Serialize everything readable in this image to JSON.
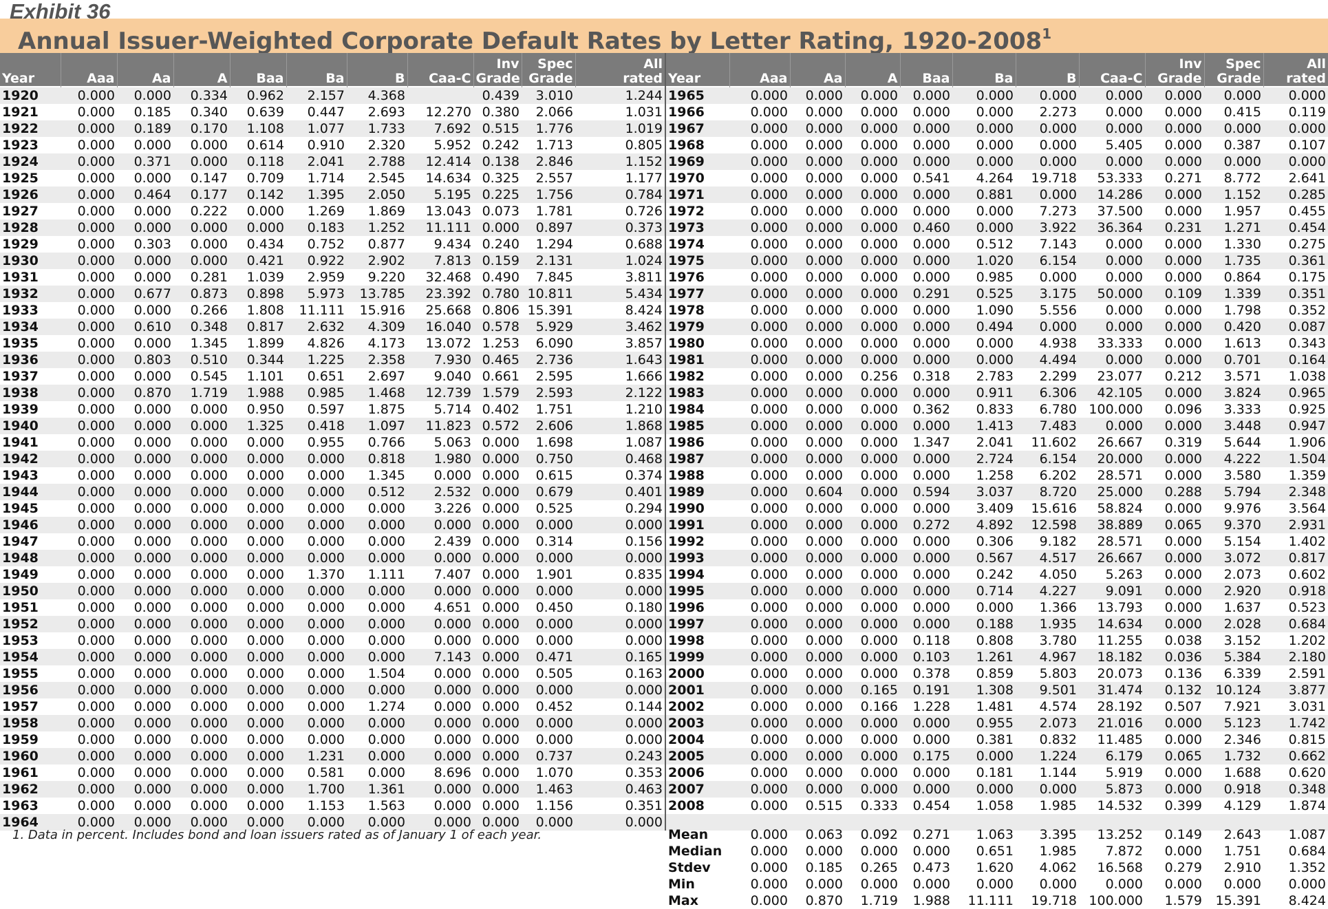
{
  "exhibit": "Exhibit 36",
  "title": "Annual Issuer-Weighted Corporate Default Rates by Letter Rating, 1920-2008",
  "title_sup": "1",
  "columns": [
    {
      "top": "",
      "bottom": "Year"
    },
    {
      "top": "",
      "bottom": "Aaa"
    },
    {
      "top": "",
      "bottom": "Aa"
    },
    {
      "top": "",
      "bottom": "A"
    },
    {
      "top": "",
      "bottom": "Baa"
    },
    {
      "top": "",
      "bottom": "Ba"
    },
    {
      "top": "",
      "bottom": "B"
    },
    {
      "top": "",
      "bottom": "Caa-C"
    },
    {
      "top": "Inv",
      "bottom": "Grade"
    },
    {
      "top": "Spec",
      "bottom": "Grade"
    },
    {
      "top": "All",
      "bottom": "rated"
    }
  ],
  "left_rows": [
    [
      "1920",
      "0.000",
      "0.000",
      "0.334",
      "0.962",
      "2.157",
      "4.368",
      "",
      "0.439",
      "3.010",
      "1.244"
    ],
    [
      "1921",
      "0.000",
      "0.185",
      "0.340",
      "0.639",
      "0.447",
      "2.693",
      "12.270",
      "0.380",
      "2.066",
      "1.031"
    ],
    [
      "1922",
      "0.000",
      "0.189",
      "0.170",
      "1.108",
      "1.077",
      "1.733",
      "7.692",
      "0.515",
      "1.776",
      "1.019"
    ],
    [
      "1923",
      "0.000",
      "0.000",
      "0.000",
      "0.614",
      "0.910",
      "2.320",
      "5.952",
      "0.242",
      "1.713",
      "0.805"
    ],
    [
      "1924",
      "0.000",
      "0.371",
      "0.000",
      "0.118",
      "2.041",
      "2.788",
      "12.414",
      "0.138",
      "2.846",
      "1.152"
    ],
    [
      "1925",
      "0.000",
      "0.000",
      "0.147",
      "0.709",
      "1.714",
      "2.545",
      "14.634",
      "0.325",
      "2.557",
      "1.177"
    ],
    [
      "1926",
      "0.000",
      "0.464",
      "0.177",
      "0.142",
      "1.395",
      "2.050",
      "5.195",
      "0.225",
      "1.756",
      "0.784"
    ],
    [
      "1927",
      "0.000",
      "0.000",
      "0.222",
      "0.000",
      "1.269",
      "1.869",
      "13.043",
      "0.073",
      "1.781",
      "0.726"
    ],
    [
      "1928",
      "0.000",
      "0.000",
      "0.000",
      "0.000",
      "0.183",
      "1.252",
      "11.111",
      "0.000",
      "0.897",
      "0.373"
    ],
    [
      "1929",
      "0.000",
      "0.303",
      "0.000",
      "0.434",
      "0.752",
      "0.877",
      "9.434",
      "0.240",
      "1.294",
      "0.688"
    ],
    [
      "1930",
      "0.000",
      "0.000",
      "0.000",
      "0.421",
      "0.922",
      "2.902",
      "7.813",
      "0.159",
      "2.131",
      "1.024"
    ],
    [
      "1931",
      "0.000",
      "0.000",
      "0.281",
      "1.039",
      "2.959",
      "9.220",
      "32.468",
      "0.490",
      "7.845",
      "3.811"
    ],
    [
      "1932",
      "0.000",
      "0.677",
      "0.873",
      "0.898",
      "5.973",
      "13.785",
      "23.392",
      "0.780",
      "10.811",
      "5.434"
    ],
    [
      "1933",
      "0.000",
      "0.000",
      "0.266",
      "1.808",
      "11.111",
      "15.916",
      "25.668",
      "0.806",
      "15.391",
      "8.424"
    ],
    [
      "1934",
      "0.000",
      "0.610",
      "0.348",
      "0.817",
      "2.632",
      "4.309",
      "16.040",
      "0.578",
      "5.929",
      "3.462"
    ],
    [
      "1935",
      "0.000",
      "0.000",
      "1.345",
      "1.899",
      "4.826",
      "4.173",
      "13.072",
      "1.253",
      "6.090",
      "3.857"
    ],
    [
      "1936",
      "0.000",
      "0.803",
      "0.510",
      "0.344",
      "1.225",
      "2.358",
      "7.930",
      "0.465",
      "2.736",
      "1.643"
    ],
    [
      "1937",
      "0.000",
      "0.000",
      "0.545",
      "1.101",
      "0.651",
      "2.697",
      "9.040",
      "0.661",
      "2.595",
      "1.666"
    ],
    [
      "1938",
      "0.000",
      "0.870",
      "1.719",
      "1.988",
      "0.985",
      "1.468",
      "12.739",
      "1.579",
      "2.593",
      "2.122"
    ],
    [
      "1939",
      "0.000",
      "0.000",
      "0.000",
      "0.950",
      "0.597",
      "1.875",
      "5.714",
      "0.402",
      "1.751",
      "1.210"
    ],
    [
      "1940",
      "0.000",
      "0.000",
      "0.000",
      "1.325",
      "0.418",
      "1.097",
      "11.823",
      "0.572",
      "2.606",
      "1.868"
    ],
    [
      "1941",
      "0.000",
      "0.000",
      "0.000",
      "0.000",
      "0.955",
      "0.766",
      "5.063",
      "0.000",
      "1.698",
      "1.087"
    ],
    [
      "1942",
      "0.000",
      "0.000",
      "0.000",
      "0.000",
      "0.000",
      "0.818",
      "1.980",
      "0.000",
      "0.750",
      "0.468"
    ],
    [
      "1943",
      "0.000",
      "0.000",
      "0.000",
      "0.000",
      "0.000",
      "1.345",
      "0.000",
      "0.000",
      "0.615",
      "0.374"
    ],
    [
      "1944",
      "0.000",
      "0.000",
      "0.000",
      "0.000",
      "0.000",
      "0.512",
      "2.532",
      "0.000",
      "0.679",
      "0.401"
    ],
    [
      "1945",
      "0.000",
      "0.000",
      "0.000",
      "0.000",
      "0.000",
      "0.000",
      "3.226",
      "0.000",
      "0.525",
      "0.294"
    ],
    [
      "1946",
      "0.000",
      "0.000",
      "0.000",
      "0.000",
      "0.000",
      "0.000",
      "0.000",
      "0.000",
      "0.000",
      "0.000"
    ],
    [
      "1947",
      "0.000",
      "0.000",
      "0.000",
      "0.000",
      "0.000",
      "0.000",
      "2.439",
      "0.000",
      "0.314",
      "0.156"
    ],
    [
      "1948",
      "0.000",
      "0.000",
      "0.000",
      "0.000",
      "0.000",
      "0.000",
      "0.000",
      "0.000",
      "0.000",
      "0.000"
    ],
    [
      "1949",
      "0.000",
      "0.000",
      "0.000",
      "0.000",
      "1.370",
      "1.111",
      "7.407",
      "0.000",
      "1.901",
      "0.835"
    ],
    [
      "1950",
      "0.000",
      "0.000",
      "0.000",
      "0.000",
      "0.000",
      "0.000",
      "0.000",
      "0.000",
      "0.000",
      "0.000"
    ],
    [
      "1951",
      "0.000",
      "0.000",
      "0.000",
      "0.000",
      "0.000",
      "0.000",
      "4.651",
      "0.000",
      "0.450",
      "0.180"
    ],
    [
      "1952",
      "0.000",
      "0.000",
      "0.000",
      "0.000",
      "0.000",
      "0.000",
      "0.000",
      "0.000",
      "0.000",
      "0.000"
    ],
    [
      "1953",
      "0.000",
      "0.000",
      "0.000",
      "0.000",
      "0.000",
      "0.000",
      "0.000",
      "0.000",
      "0.000",
      "0.000"
    ],
    [
      "1954",
      "0.000",
      "0.000",
      "0.000",
      "0.000",
      "0.000",
      "0.000",
      "7.143",
      "0.000",
      "0.471",
      "0.165"
    ],
    [
      "1955",
      "0.000",
      "0.000",
      "0.000",
      "0.000",
      "0.000",
      "1.504",
      "0.000",
      "0.000",
      "0.505",
      "0.163"
    ],
    [
      "1956",
      "0.000",
      "0.000",
      "0.000",
      "0.000",
      "0.000",
      "0.000",
      "0.000",
      "0.000",
      "0.000",
      "0.000"
    ],
    [
      "1957",
      "0.000",
      "0.000",
      "0.000",
      "0.000",
      "0.000",
      "1.274",
      "0.000",
      "0.000",
      "0.452",
      "0.144"
    ],
    [
      "1958",
      "0.000",
      "0.000",
      "0.000",
      "0.000",
      "0.000",
      "0.000",
      "0.000",
      "0.000",
      "0.000",
      "0.000"
    ],
    [
      "1959",
      "0.000",
      "0.000",
      "0.000",
      "0.000",
      "0.000",
      "0.000",
      "0.000",
      "0.000",
      "0.000",
      "0.000"
    ],
    [
      "1960",
      "0.000",
      "0.000",
      "0.000",
      "0.000",
      "1.231",
      "0.000",
      "0.000",
      "0.000",
      "0.737",
      "0.243"
    ],
    [
      "1961",
      "0.000",
      "0.000",
      "0.000",
      "0.000",
      "0.581",
      "0.000",
      "8.696",
      "0.000",
      "1.070",
      "0.353"
    ],
    [
      "1962",
      "0.000",
      "0.000",
      "0.000",
      "0.000",
      "1.700",
      "1.361",
      "0.000",
      "0.000",
      "1.463",
      "0.463"
    ],
    [
      "1963",
      "0.000",
      "0.000",
      "0.000",
      "0.000",
      "1.153",
      "1.563",
      "0.000",
      "0.000",
      "1.156",
      "0.351"
    ],
    [
      "1964",
      "0.000",
      "0.000",
      "0.000",
      "0.000",
      "0.000",
      "0.000",
      "0.000",
      "0.000",
      "0.000",
      "0.000"
    ]
  ],
  "right_rows": [
    [
      "1965",
      "0.000",
      "0.000",
      "0.000",
      "0.000",
      "0.000",
      "0.000",
      "0.000",
      "0.000",
      "0.000",
      "0.000"
    ],
    [
      "1966",
      "0.000",
      "0.000",
      "0.000",
      "0.000",
      "0.000",
      "2.273",
      "0.000",
      "0.000",
      "0.415",
      "0.119"
    ],
    [
      "1967",
      "0.000",
      "0.000",
      "0.000",
      "0.000",
      "0.000",
      "0.000",
      "0.000",
      "0.000",
      "0.000",
      "0.000"
    ],
    [
      "1968",
      "0.000",
      "0.000",
      "0.000",
      "0.000",
      "0.000",
      "0.000",
      "5.405",
      "0.000",
      "0.387",
      "0.107"
    ],
    [
      "1969",
      "0.000",
      "0.000",
      "0.000",
      "0.000",
      "0.000",
      "0.000",
      "0.000",
      "0.000",
      "0.000",
      "0.000"
    ],
    [
      "1970",
      "0.000",
      "0.000",
      "0.000",
      "0.541",
      "4.264",
      "19.718",
      "53.333",
      "0.271",
      "8.772",
      "2.641"
    ],
    [
      "1971",
      "0.000",
      "0.000",
      "0.000",
      "0.000",
      "0.881",
      "0.000",
      "14.286",
      "0.000",
      "1.152",
      "0.285"
    ],
    [
      "1972",
      "0.000",
      "0.000",
      "0.000",
      "0.000",
      "0.000",
      "7.273",
      "37.500",
      "0.000",
      "1.957",
      "0.455"
    ],
    [
      "1973",
      "0.000",
      "0.000",
      "0.000",
      "0.460",
      "0.000",
      "3.922",
      "36.364",
      "0.231",
      "1.271",
      "0.454"
    ],
    [
      "1974",
      "0.000",
      "0.000",
      "0.000",
      "0.000",
      "0.512",
      "7.143",
      "0.000",
      "0.000",
      "1.330",
      "0.275"
    ],
    [
      "1975",
      "0.000",
      "0.000",
      "0.000",
      "0.000",
      "1.020",
      "6.154",
      "0.000",
      "0.000",
      "1.735",
      "0.361"
    ],
    [
      "1976",
      "0.000",
      "0.000",
      "0.000",
      "0.000",
      "0.985",
      "0.000",
      "0.000",
      "0.000",
      "0.864",
      "0.175"
    ],
    [
      "1977",
      "0.000",
      "0.000",
      "0.000",
      "0.291",
      "0.525",
      "3.175",
      "50.000",
      "0.109",
      "1.339",
      "0.351"
    ],
    [
      "1978",
      "0.000",
      "0.000",
      "0.000",
      "0.000",
      "1.090",
      "5.556",
      "0.000",
      "0.000",
      "1.798",
      "0.352"
    ],
    [
      "1979",
      "0.000",
      "0.000",
      "0.000",
      "0.000",
      "0.494",
      "0.000",
      "0.000",
      "0.000",
      "0.420",
      "0.087"
    ],
    [
      "1980",
      "0.000",
      "0.000",
      "0.000",
      "0.000",
      "0.000",
      "4.938",
      "33.333",
      "0.000",
      "1.613",
      "0.343"
    ],
    [
      "1981",
      "0.000",
      "0.000",
      "0.000",
      "0.000",
      "0.000",
      "4.494",
      "0.000",
      "0.000",
      "0.701",
      "0.164"
    ],
    [
      "1982",
      "0.000",
      "0.000",
      "0.256",
      "0.318",
      "2.783",
      "2.299",
      "23.077",
      "0.212",
      "3.571",
      "1.038"
    ],
    [
      "1983",
      "0.000",
      "0.000",
      "0.000",
      "0.000",
      "0.911",
      "6.306",
      "42.105",
      "0.000",
      "3.824",
      "0.965"
    ],
    [
      "1984",
      "0.000",
      "0.000",
      "0.000",
      "0.362",
      "0.833",
      "6.780",
      "100.000",
      "0.096",
      "3.333",
      "0.925"
    ],
    [
      "1985",
      "0.000",
      "0.000",
      "0.000",
      "0.000",
      "1.413",
      "7.483",
      "0.000",
      "0.000",
      "3.448",
      "0.947"
    ],
    [
      "1986",
      "0.000",
      "0.000",
      "0.000",
      "1.347",
      "2.041",
      "11.602",
      "26.667",
      "0.319",
      "5.644",
      "1.906"
    ],
    [
      "1987",
      "0.000",
      "0.000",
      "0.000",
      "0.000",
      "2.724",
      "6.154",
      "20.000",
      "0.000",
      "4.222",
      "1.504"
    ],
    [
      "1988",
      "0.000",
      "0.000",
      "0.000",
      "0.000",
      "1.258",
      "6.202",
      "28.571",
      "0.000",
      "3.580",
      "1.359"
    ],
    [
      "1989",
      "0.000",
      "0.604",
      "0.000",
      "0.594",
      "3.037",
      "8.720",
      "25.000",
      "0.288",
      "5.794",
      "2.348"
    ],
    [
      "1990",
      "0.000",
      "0.000",
      "0.000",
      "0.000",
      "3.409",
      "15.616",
      "58.824",
      "0.000",
      "9.976",
      "3.564"
    ],
    [
      "1991",
      "0.000",
      "0.000",
      "0.000",
      "0.272",
      "4.892",
      "12.598",
      "38.889",
      "0.065",
      "9.370",
      "2.931"
    ],
    [
      "1992",
      "0.000",
      "0.000",
      "0.000",
      "0.000",
      "0.306",
      "9.182",
      "28.571",
      "0.000",
      "5.154",
      "1.402"
    ],
    [
      "1993",
      "0.000",
      "0.000",
      "0.000",
      "0.000",
      "0.567",
      "4.517",
      "26.667",
      "0.000",
      "3.072",
      "0.817"
    ],
    [
      "1994",
      "0.000",
      "0.000",
      "0.000",
      "0.000",
      "0.242",
      "4.050",
      "5.263",
      "0.000",
      "2.073",
      "0.602"
    ],
    [
      "1995",
      "0.000",
      "0.000",
      "0.000",
      "0.000",
      "0.714",
      "4.227",
      "9.091",
      "0.000",
      "2.920",
      "0.918"
    ],
    [
      "1996",
      "0.000",
      "0.000",
      "0.000",
      "0.000",
      "0.000",
      "1.366",
      "13.793",
      "0.000",
      "1.637",
      "0.523"
    ],
    [
      "1997",
      "0.000",
      "0.000",
      "0.000",
      "0.000",
      "0.188",
      "1.935",
      "14.634",
      "0.000",
      "2.028",
      "0.684"
    ],
    [
      "1998",
      "0.000",
      "0.000",
      "0.000",
      "0.118",
      "0.808",
      "3.780",
      "11.255",
      "0.038",
      "3.152",
      "1.202"
    ],
    [
      "1999",
      "0.000",
      "0.000",
      "0.000",
      "0.103",
      "1.261",
      "4.967",
      "18.182",
      "0.036",
      "5.384",
      "2.180"
    ],
    [
      "2000",
      "0.000",
      "0.000",
      "0.000",
      "0.378",
      "0.859",
      "5.803",
      "20.073",
      "0.136",
      "6.339",
      "2.591"
    ],
    [
      "2001",
      "0.000",
      "0.000",
      "0.165",
      "0.191",
      "1.308",
      "9.501",
      "31.474",
      "0.132",
      "10.124",
      "3.877"
    ],
    [
      "2002",
      "0.000",
      "0.000",
      "0.166",
      "1.228",
      "1.481",
      "4.574",
      "28.192",
      "0.507",
      "7.921",
      "3.031"
    ],
    [
      "2003",
      "0.000",
      "0.000",
      "0.000",
      "0.000",
      "0.955",
      "2.073",
      "21.016",
      "0.000",
      "5.123",
      "1.742"
    ],
    [
      "2004",
      "0.000",
      "0.000",
      "0.000",
      "0.000",
      "0.381",
      "0.832",
      "11.485",
      "0.000",
      "2.346",
      "0.815"
    ],
    [
      "2005",
      "0.000",
      "0.000",
      "0.000",
      "0.175",
      "0.000",
      "1.224",
      "6.179",
      "0.065",
      "1.732",
      "0.662"
    ],
    [
      "2006",
      "0.000",
      "0.000",
      "0.000",
      "0.000",
      "0.181",
      "1.144",
      "5.919",
      "0.000",
      "1.688",
      "0.620"
    ],
    [
      "2007",
      "0.000",
      "0.000",
      "0.000",
      "0.000",
      "0.000",
      "0.000",
      "5.873",
      "0.000",
      "0.918",
      "0.348"
    ],
    [
      "2008",
      "0.000",
      "0.515",
      "0.333",
      "0.454",
      "1.058",
      "1.985",
      "14.532",
      "0.399",
      "4.129",
      "1.874"
    ],
    [
      "",
      "",
      "",
      "",
      "",
      "",
      "",
      "",
      "",
      "",
      ""
    ]
  ],
  "stats_rows": [
    [
      "Mean",
      "0.000",
      "0.063",
      "0.092",
      "0.271",
      "1.063",
      "3.395",
      "13.252",
      "0.149",
      "2.643",
      "1.087"
    ],
    [
      "Median",
      "0.000",
      "0.000",
      "0.000",
      "0.000",
      "0.651",
      "1.985",
      "7.872",
      "0.000",
      "1.751",
      "0.684"
    ],
    [
      "Stdev",
      "0.000",
      "0.185",
      "0.265",
      "0.473",
      "1.620",
      "4.062",
      "16.568",
      "0.279",
      "2.910",
      "1.352"
    ],
    [
      "Min",
      "0.000",
      "0.000",
      "0.000",
      "0.000",
      "0.000",
      "0.000",
      "0.000",
      "0.000",
      "0.000",
      "0.000"
    ],
    [
      "Max",
      "0.000",
      "0.870",
      "1.719",
      "1.988",
      "11.111",
      "19.718",
      "100.000",
      "1.579",
      "15.391",
      "8.424"
    ]
  ],
  "footnote": "1. Data in percent. Includes bond and loan issuers rated as of January 1 of each year."
}
